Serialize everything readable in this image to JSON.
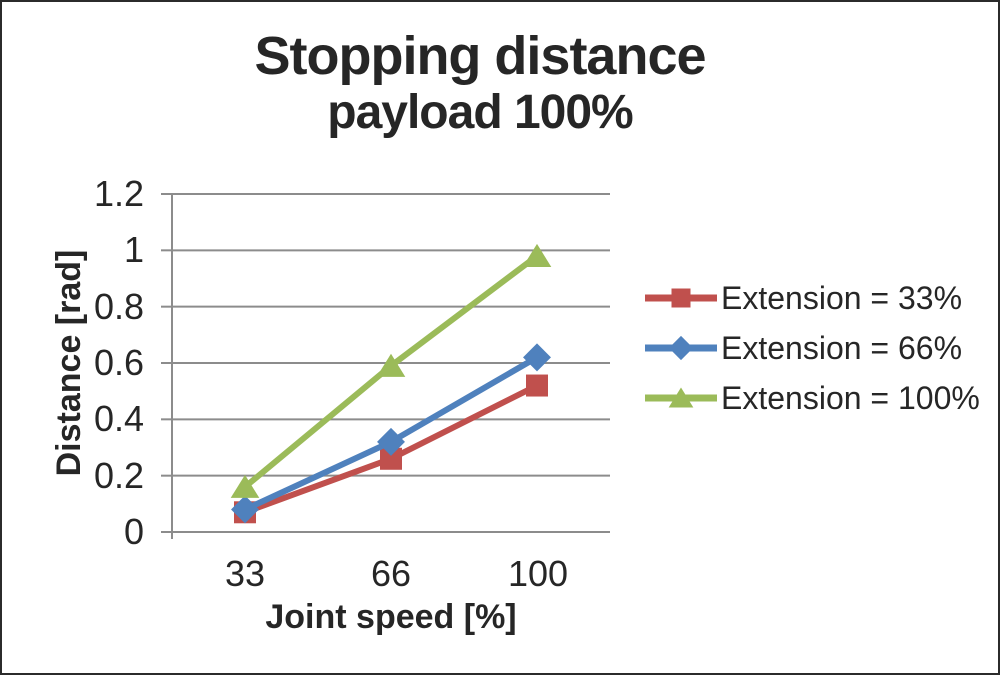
{
  "chart_data": {
    "type": "line",
    "title": "Stopping distance",
    "subtitle": "payload 100%",
    "xlabel": "Joint speed [%]",
    "ylabel": "Distance [rad]",
    "categories": [
      "33",
      "66",
      "100"
    ],
    "x_values": [
      33,
      66,
      100
    ],
    "y_tick_labels": [
      "1.2",
      "1",
      "0.8",
      "0.6",
      "0.4",
      "0.2",
      "0"
    ],
    "ylim": [
      0,
      1.2
    ],
    "grid": "horizontal",
    "legend_position": "right",
    "axis_color": "#8C8C8C",
    "text_color": "#262626",
    "series": [
      {
        "name": "Extension = 33%",
        "marker": "square",
        "color": "#C0504D",
        "values": [
          0.07,
          0.26,
          0.52
        ]
      },
      {
        "name": "Extension = 66%",
        "marker": "diamond",
        "color": "#4F81BD",
        "values": [
          0.08,
          0.32,
          0.62
        ]
      },
      {
        "name": "Extension = 100%",
        "marker": "triangle",
        "color": "#9BBB59",
        "values": [
          0.16,
          0.59,
          0.98
        ]
      }
    ]
  }
}
